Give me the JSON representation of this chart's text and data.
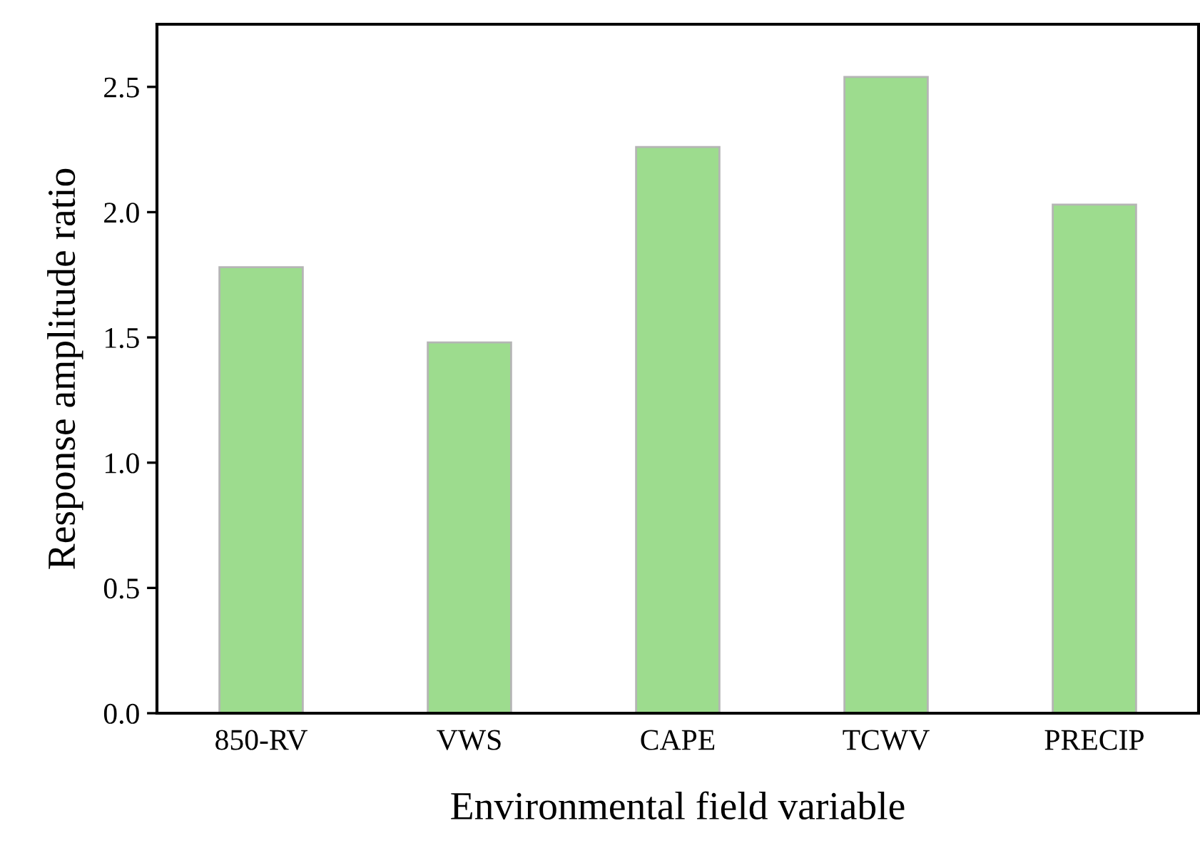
{
  "chart_data": {
    "type": "bar",
    "xlabel": "Environmental field variable",
    "ylabel": "Response amplitude ratio",
    "categories": [
      "850-RV",
      "VWS",
      "CAPE",
      "TCWV",
      "PRECIP"
    ],
    "values": [
      1.78,
      1.48,
      2.26,
      2.54,
      2.03
    ],
    "color": "#9ddc8e",
    "ylim": [
      0,
      2.75
    ],
    "yticks": [
      {
        "value": 0,
        "label": "0.0"
      },
      {
        "value": 0.5,
        "label": "0.5"
      },
      {
        "value": 1,
        "label": "1.0"
      },
      {
        "value": 1.5,
        "label": "1.5"
      },
      {
        "value": 2,
        "label": "2.0"
      },
      {
        "value": 2.5,
        "label": "2.5"
      }
    ],
    "grid": false
  }
}
